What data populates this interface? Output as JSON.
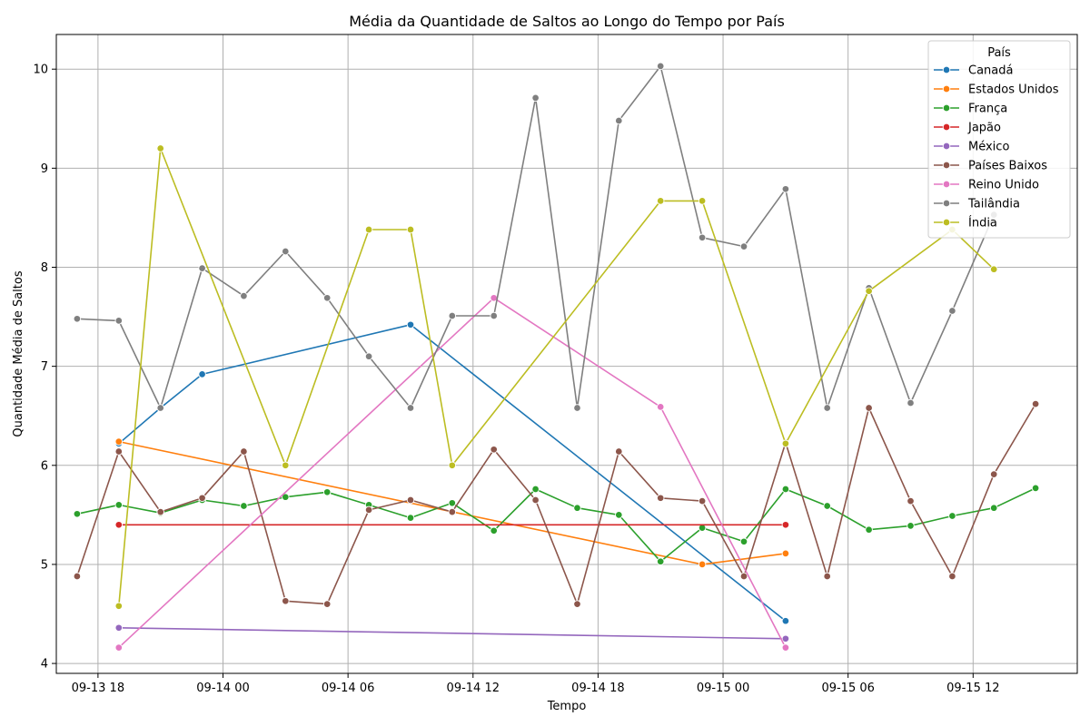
{
  "chart_data": {
    "type": "line",
    "title": "Média da Quantidade de Saltos ao Longo do Tempo por País",
    "xlabel": "Tempo",
    "ylabel": "Quantidade Média de Saltos",
    "x_ticks": [
      "09-13 18",
      "09-14 00",
      "09-14 06",
      "09-14 12",
      "09-14 18",
      "09-15 00",
      "09-15 06",
      "09-15 12"
    ],
    "y_ticks": [
      4,
      5,
      6,
      7,
      8,
      9,
      10
    ],
    "xlim": [
      "2023-09-13 16:00",
      "2023-09-15 17:00"
    ],
    "ylim": [
      3.9,
      10.35
    ],
    "grid": true,
    "legend": {
      "title": "País",
      "position": "top-right"
    },
    "series": [
      {
        "name": "Canadá",
        "color": "#1f77b4",
        "points": [
          [
            "2023-09-13 19:00",
            6.22
          ],
          [
            "2023-09-13 21:00",
            6.58
          ],
          [
            "2023-09-13 23:00",
            6.92
          ],
          [
            "2023-09-14 09:00",
            7.42
          ],
          [
            "2023-09-15 03:00",
            4.43
          ]
        ]
      },
      {
        "name": "Estados Unidos",
        "color": "#ff7f0e",
        "points": [
          [
            "2023-09-13 19:00",
            6.24
          ],
          [
            "2023-09-14 23:00",
            5.0
          ],
          [
            "2023-09-15 03:00",
            5.11
          ]
        ]
      },
      {
        "name": "França",
        "color": "#2ca02c",
        "points": [
          [
            "2023-09-13 17:00",
            5.51
          ],
          [
            "2023-09-13 19:00",
            5.6
          ],
          [
            "2023-09-13 21:00",
            5.52
          ],
          [
            "2023-09-13 23:00",
            5.65
          ],
          [
            "2023-09-14 01:00",
            5.59
          ],
          [
            "2023-09-14 03:00",
            5.68
          ],
          [
            "2023-09-14 05:00",
            5.73
          ],
          [
            "2023-09-14 07:00",
            5.6
          ],
          [
            "2023-09-14 09:00",
            5.47
          ],
          [
            "2023-09-14 11:00",
            5.62
          ],
          [
            "2023-09-14 13:00",
            5.34
          ],
          [
            "2023-09-14 15:00",
            5.76
          ],
          [
            "2023-09-14 17:00",
            5.57
          ],
          [
            "2023-09-14 19:00",
            5.5
          ],
          [
            "2023-09-14 21:00",
            5.03
          ],
          [
            "2023-09-14 23:00",
            5.37
          ],
          [
            "2023-09-15 01:00",
            5.23
          ],
          [
            "2023-09-15 03:00",
            5.76
          ],
          [
            "2023-09-15 05:00",
            5.59
          ],
          [
            "2023-09-15 07:00",
            5.35
          ],
          [
            "2023-09-15 09:00",
            5.39
          ],
          [
            "2023-09-15 11:00",
            5.49
          ],
          [
            "2023-09-15 13:00",
            5.57
          ],
          [
            "2023-09-15 15:00",
            5.77
          ]
        ]
      },
      {
        "name": "Japão",
        "color": "#d62728",
        "points": [
          [
            "2023-09-13 19:00",
            5.4
          ],
          [
            "2023-09-15 03:00",
            5.4
          ]
        ]
      },
      {
        "name": "México",
        "color": "#9467bd",
        "points": [
          [
            "2023-09-13 19:00",
            4.36
          ],
          [
            "2023-09-15 03:00",
            4.25
          ]
        ]
      },
      {
        "name": "Países Baixos",
        "color": "#8c564b",
        "points": [
          [
            "2023-09-13 17:00",
            4.88
          ],
          [
            "2023-09-13 19:00",
            6.14
          ],
          [
            "2023-09-13 21:00",
            5.53
          ],
          [
            "2023-09-13 23:00",
            5.67
          ],
          [
            "2023-09-14 01:00",
            6.14
          ],
          [
            "2023-09-14 03:00",
            4.63
          ],
          [
            "2023-09-14 05:00",
            4.6
          ],
          [
            "2023-09-14 07:00",
            5.55
          ],
          [
            "2023-09-14 09:00",
            5.65
          ],
          [
            "2023-09-14 11:00",
            5.53
          ],
          [
            "2023-09-14 13:00",
            6.16
          ],
          [
            "2023-09-14 15:00",
            5.65
          ],
          [
            "2023-09-14 17:00",
            4.6
          ],
          [
            "2023-09-14 19:00",
            6.14
          ],
          [
            "2023-09-14 21:00",
            5.67
          ],
          [
            "2023-09-14 23:00",
            5.64
          ],
          [
            "2023-09-15 01:00",
            4.88
          ],
          [
            "2023-09-15 03:00",
            6.23
          ],
          [
            "2023-09-15 05:00",
            4.88
          ],
          [
            "2023-09-15 07:00",
            6.58
          ],
          [
            "2023-09-15 09:00",
            5.64
          ],
          [
            "2023-09-15 11:00",
            4.88
          ],
          [
            "2023-09-15 13:00",
            5.91
          ],
          [
            "2023-09-15 15:00",
            6.62
          ]
        ]
      },
      {
        "name": "Reino Unido",
        "color": "#e377c2",
        "points": [
          [
            "2023-09-13 19:00",
            4.16
          ],
          [
            "2023-09-14 13:00",
            7.69
          ],
          [
            "2023-09-14 21:00",
            6.59
          ],
          [
            "2023-09-15 03:00",
            4.16
          ]
        ]
      },
      {
        "name": "Tailândia",
        "color": "#7f7f7f",
        "points": [
          [
            "2023-09-13 17:00",
            7.48
          ],
          [
            "2023-09-13 19:00",
            7.46
          ],
          [
            "2023-09-13 21:00",
            6.58
          ],
          [
            "2023-09-13 23:00",
            7.99
          ],
          [
            "2023-09-14 01:00",
            7.71
          ],
          [
            "2023-09-14 03:00",
            8.16
          ],
          [
            "2023-09-14 05:00",
            7.69
          ],
          [
            "2023-09-14 07:00",
            7.1
          ],
          [
            "2023-09-14 09:00",
            6.58
          ],
          [
            "2023-09-14 11:00",
            7.51
          ],
          [
            "2023-09-14 13:00",
            7.51
          ],
          [
            "2023-09-14 15:00",
            9.71
          ],
          [
            "2023-09-14 17:00",
            6.58
          ],
          [
            "2023-09-14 19:00",
            9.48
          ],
          [
            "2023-09-14 21:00",
            10.03
          ],
          [
            "2023-09-14 23:00",
            8.3
          ],
          [
            "2023-09-15 01:00",
            8.21
          ],
          [
            "2023-09-15 03:00",
            8.79
          ],
          [
            "2023-09-15 05:00",
            6.58
          ],
          [
            "2023-09-15 07:00",
            7.79
          ],
          [
            "2023-09-15 09:00",
            6.63
          ],
          [
            "2023-09-15 11:00",
            7.56
          ],
          [
            "2023-09-15 13:00",
            8.53
          ]
        ]
      },
      {
        "name": "Índia",
        "color": "#bcbd22",
        "points": [
          [
            "2023-09-13 19:00",
            4.58
          ],
          [
            "2023-09-13 21:00",
            9.2
          ],
          [
            "2023-09-14 03:00",
            6.0
          ],
          [
            "2023-09-14 07:00",
            8.38
          ],
          [
            "2023-09-14 09:00",
            8.38
          ],
          [
            "2023-09-14 11:00",
            6.0
          ],
          [
            "2023-09-14 21:00",
            8.67
          ],
          [
            "2023-09-14 23:00",
            8.67
          ],
          [
            "2023-09-15 03:00",
            6.22
          ],
          [
            "2023-09-15 07:00",
            7.76
          ],
          [
            "2023-09-15 11:00",
            8.38
          ],
          [
            "2023-09-15 13:00",
            7.98
          ]
        ]
      }
    ]
  }
}
